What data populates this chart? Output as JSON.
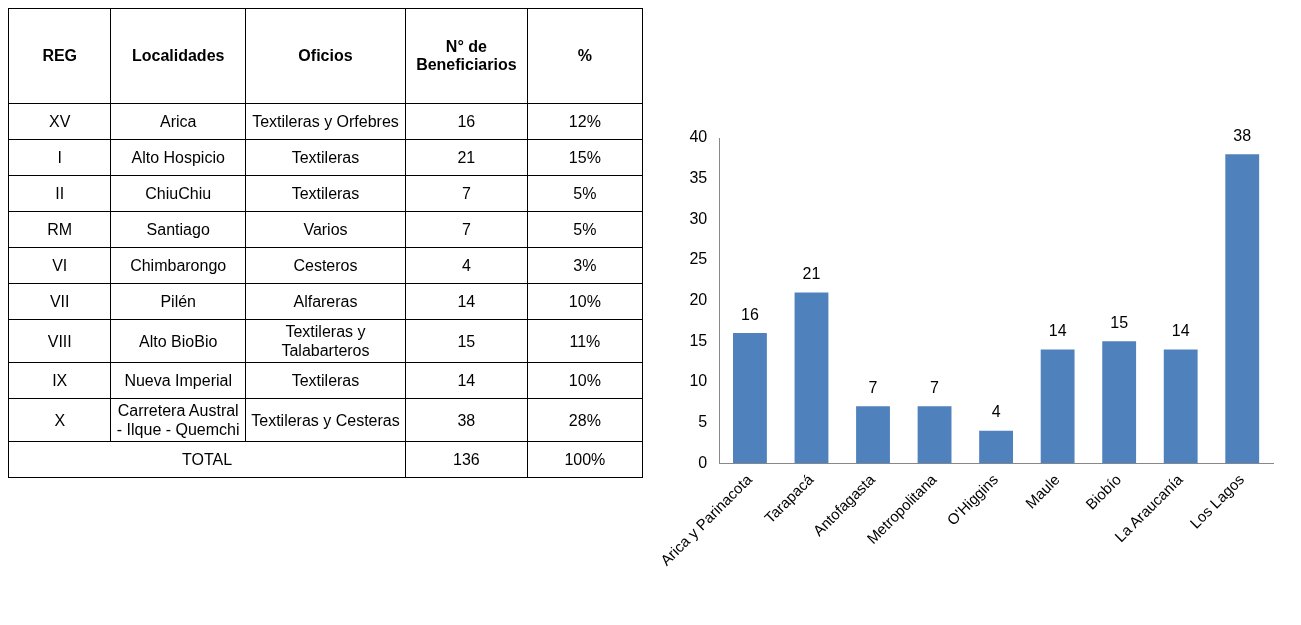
{
  "chart_data": [
    {
      "type": "other",
      "categories": [
        "REG",
        "Localidades",
        "Oficios",
        "N° de Beneficiarios",
        "%"
      ],
      "cell_labels": [
        [
          "XV",
          "Arica",
          "Textileras y Orfebres",
          "16",
          "12%"
        ],
        [
          "I",
          "Alto Hospicio",
          "Textileras",
          "21",
          "15%"
        ],
        [
          "II",
          "ChiuChiu",
          "Textileras",
          "7",
          "5%"
        ],
        [
          "RM",
          "Santiago",
          "Varios",
          "7",
          "5%"
        ],
        [
          "VI",
          "Chimbarongo",
          "Cesteros",
          "4",
          "3%"
        ],
        [
          "VII",
          "Pilén",
          "Alfareras",
          "14",
          "10%"
        ],
        [
          "VIII",
          "Alto BioBio",
          "Textileras y Talabarteros",
          "15",
          "11%"
        ],
        [
          "IX",
          "Nueva Imperial",
          "Textileras",
          "14",
          "10%"
        ],
        [
          "X",
          "Carretera Austral - Ilque - Quemchi",
          "Textileras y Cesteras",
          "38",
          "28%"
        ],
        [
          "TOTAL",
          null,
          null,
          "136",
          "100%"
        ]
      ]
    },
    {
      "type": "bar",
      "categories": [
        "Arica y Parinacota",
        "Tarapacá",
        "Antofagasta",
        "Metropolitana",
        "O'Higgins",
        "Maule",
        "Biobío",
        "La Araucanía",
        "Los Lagos"
      ],
      "values": [
        16,
        21,
        7,
        7,
        4,
        14,
        15,
        14,
        38
      ],
      "color": "#4f81bd",
      "ylim": [
        0,
        40
      ],
      "yticks": [
        0,
        5,
        10,
        15,
        20,
        25,
        30,
        35,
        40
      ],
      "grid": false,
      "legend": false,
      "data_labels": true
    }
  ]
}
